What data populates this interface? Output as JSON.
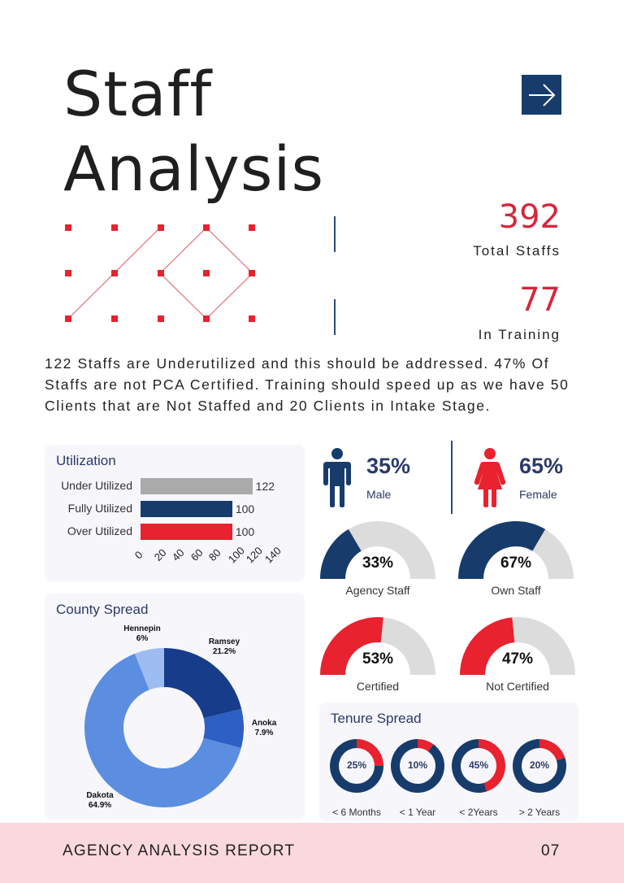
{
  "page": {
    "title_line1": "Staff",
    "title_line2": "Analysis",
    "arrow_icon": "arrow-right-icon"
  },
  "stats": {
    "total_value": "392",
    "total_label": "Total Staffs",
    "training_value": "77",
    "training_label": "In Training"
  },
  "summary": "122 Staffs are Underutilized and this should be addressed. 47% Of Staffs are not PCA Certified. Training should speed up as we have 50 Clients that are Not Staffed and 20 Clients in Intake Stage.",
  "utilization": {
    "title": "Utilization"
  },
  "county": {
    "title": "County Spread"
  },
  "gender": {
    "male_pct": "35%",
    "male_label": "Male",
    "female_pct": "65%",
    "female_label": "Female",
    "male_color": "#173c6b",
    "female_color": "#e8222e"
  },
  "gauges": {
    "agency_pct": "33%",
    "agency_label": "Agency Staff",
    "own_pct": "67%",
    "own_label": "Own Staff",
    "certified_pct": "53%",
    "certified_label": "Certified",
    "notcert_pct": "47%",
    "notcert_label": "Not Certified"
  },
  "tenure": {
    "title": "Tenure Spread"
  },
  "footer": {
    "report": "AGENCY ANALYSIS REPORT",
    "page_number": "07"
  },
  "colors": {
    "navy": "#173c6b",
    "red": "#e8222e",
    "grey": "#aaaaaa",
    "light_grey": "#dcdcdc",
    "accent_red": "#d7263d"
  },
  "chart_data": [
    {
      "type": "bar",
      "title": "Utilization",
      "orientation": "horizontal",
      "categories": [
        "Under Utilized",
        "Fully Utilized",
        "Over Utilized"
      ],
      "values": [
        122,
        100,
        100
      ],
      "value_labels": [
        "122",
        "100",
        "100"
      ],
      "colors": [
        "#aaaaaa",
        "#173c6b",
        "#e8222e"
      ],
      "xlim": [
        0,
        140
      ],
      "xticks": [
        "0",
        "20",
        "40",
        "60",
        "80",
        "100",
        "120",
        "140"
      ]
    },
    {
      "type": "pie",
      "donut": true,
      "title": "County Spread",
      "labels": [
        "Ramsey",
        "Anoka",
        "Dakota",
        "Hennepin"
      ],
      "values": [
        21.2,
        7.9,
        64.9,
        6
      ],
      "value_labels": [
        "21.2%",
        "7.9%",
        "64.9%",
        "6%"
      ],
      "colors": [
        "#173c8a",
        "#2e5fc4",
        "#5b8ee0",
        "#9dbcf2"
      ]
    },
    {
      "type": "pie",
      "gauge": true,
      "labels": [
        "Agency Staff",
        "Own Staff",
        "Certified",
        "Not Certified"
      ],
      "values": [
        33,
        67,
        53,
        47
      ],
      "colors": [
        "#173c6b",
        "#173c6b",
        "#e8222e",
        "#e8222e"
      ]
    },
    {
      "type": "pie",
      "donut": true,
      "title": "Tenure Spread",
      "labels": [
        "< 6 Months",
        "< 1 Year",
        "< 2Years",
        "> 2 Years"
      ],
      "values": [
        25,
        10,
        45,
        20
      ],
      "value_labels": [
        "25%",
        "10%",
        "45%",
        "20%"
      ],
      "colors": [
        "#e8222e",
        "#173c6b"
      ]
    }
  ]
}
